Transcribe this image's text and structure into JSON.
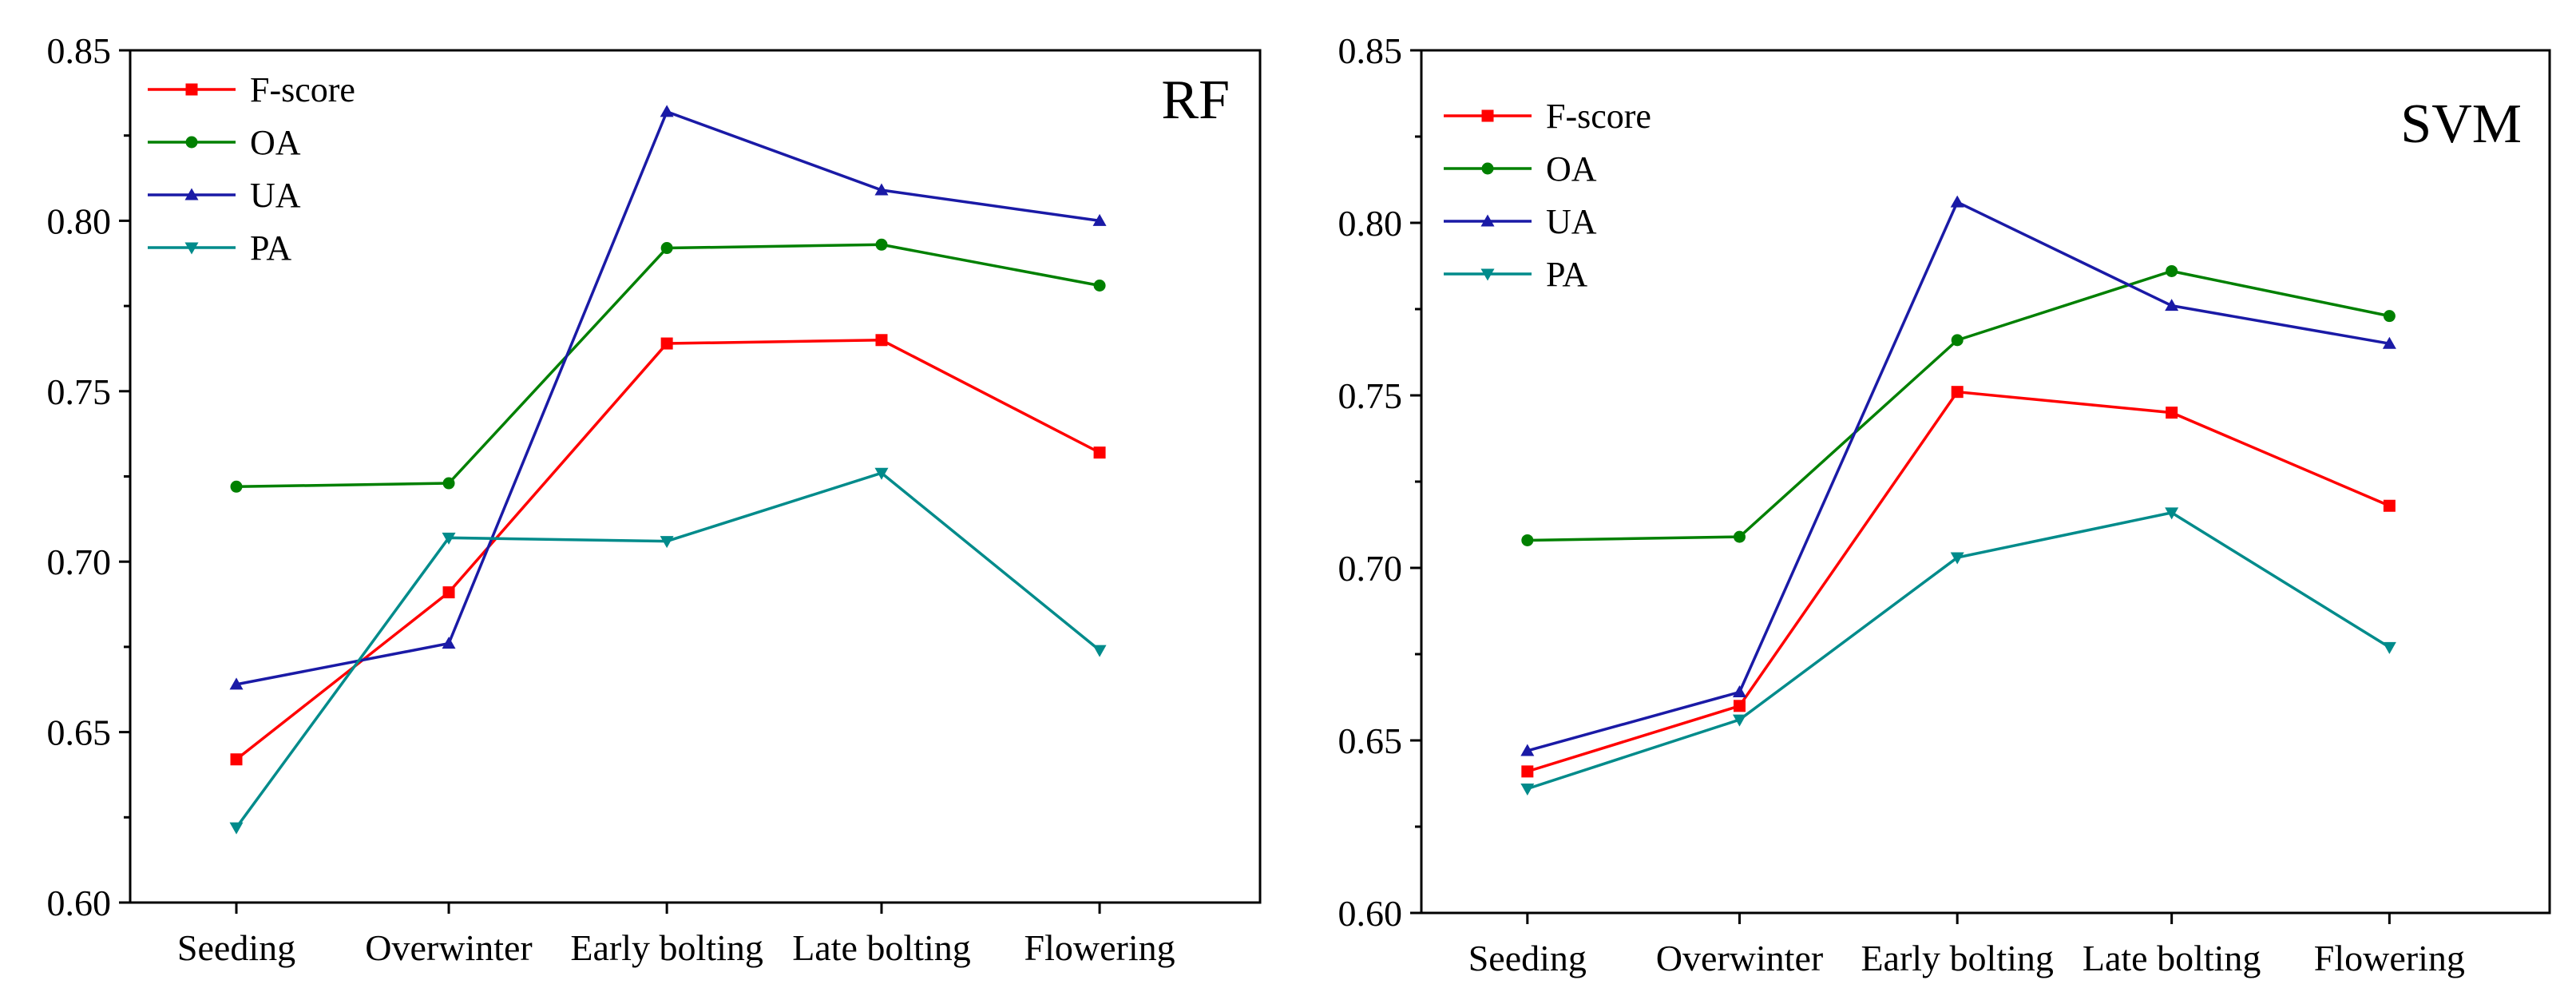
{
  "chart_data": [
    {
      "type": "line",
      "title": "RF",
      "xlabel": "",
      "ylabel": "",
      "ylim": [
        0.6,
        0.85
      ],
      "yticks": [
        "0.60",
        "0.65",
        "0.70",
        "0.75",
        "0.80",
        "0.85"
      ],
      "categories": [
        "Seeding",
        "Overwinter",
        "Early bolting",
        "Late bolting",
        "Flowering"
      ],
      "legend_position": "top-left",
      "series": [
        {
          "name": "F-score",
          "color": "#ff0000",
          "marker": "square",
          "values": [
            0.642,
            0.691,
            0.764,
            0.765,
            0.732
          ]
        },
        {
          "name": "OA",
          "color": "#008000",
          "marker": "circle",
          "values": [
            0.722,
            0.723,
            0.792,
            0.793,
            0.781
          ]
        },
        {
          "name": "UA",
          "color": "#1a1aa6",
          "marker": "triangle-up",
          "values": [
            0.664,
            0.676,
            0.832,
            0.809,
            0.8
          ]
        },
        {
          "name": "PA",
          "color": "#008b8b",
          "marker": "triangle-down",
          "values": [
            0.622,
            0.707,
            0.706,
            0.726,
            0.674
          ]
        }
      ]
    },
    {
      "type": "line",
      "title": "SVM",
      "xlabel": "",
      "ylabel": "",
      "ylim": [
        0.6,
        0.85
      ],
      "yticks": [
        "0.60",
        "0.65",
        "0.70",
        "0.75",
        "0.80",
        "0.85"
      ],
      "categories": [
        "Seeding",
        "Overwinter",
        "Early bolting",
        "Late bolting",
        "Flowering"
      ],
      "legend_position": "top-left",
      "series": [
        {
          "name": "F-score",
          "color": "#ff0000",
          "marker": "square",
          "values": [
            0.641,
            0.66,
            0.751,
            0.745,
            0.718
          ]
        },
        {
          "name": "OA",
          "color": "#008000",
          "marker": "circle",
          "values": [
            0.708,
            0.709,
            0.766,
            0.786,
            0.773
          ]
        },
        {
          "name": "UA",
          "color": "#1a1aa6",
          "marker": "triangle-up",
          "values": [
            0.647,
            0.664,
            0.806,
            0.776,
            0.765
          ]
        },
        {
          "name": "PA",
          "color": "#008b8b",
          "marker": "triangle-down",
          "values": [
            0.636,
            0.656,
            0.703,
            0.716,
            0.677
          ]
        }
      ]
    }
  ]
}
